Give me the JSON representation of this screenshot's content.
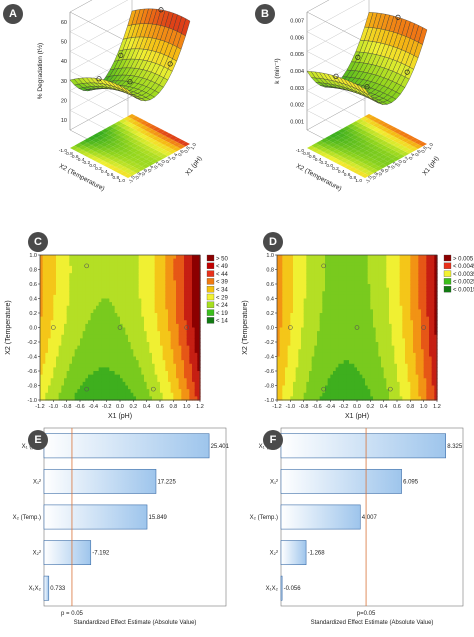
{
  "panels": {
    "a": {
      "letter": "A"
    },
    "b": {
      "letter": "B"
    },
    "c": {
      "letter": "C"
    },
    "d": {
      "letter": "D"
    },
    "e": {
      "letter": "E"
    },
    "f": {
      "letter": "F"
    }
  },
  "chart_data": [
    {
      "id": "A",
      "type": "surface3d",
      "zlabel": "% Degradation (t½)",
      "xlabel": "X1 (pH)",
      "ylabel": "X2 (Temperature)",
      "z_ticks": [
        "10",
        "20",
        "30",
        "40",
        "50",
        "60"
      ],
      "x_ticks": [
        "-1.0",
        "-0.8",
        "-0.6",
        "-0.4",
        "-0.2",
        "0.0",
        "0.2",
        "0.4",
        "0.6",
        "0.8",
        "1.0"
      ],
      "y_ticks": [
        "1.0",
        "0.8",
        "0.6",
        "0.4",
        "0.2",
        "0.0",
        "-0.2",
        "-0.4",
        "-0.6",
        "-0.8",
        "-1.0"
      ]
    },
    {
      "id": "B",
      "type": "surface3d",
      "zlabel": "k (min⁻¹)",
      "xlabel": "X1 (pH)",
      "ylabel": "X2 (Temperature)",
      "z_ticks": [
        "0.001",
        "0.002",
        "0.003",
        "0.004",
        "0.005",
        "0.006",
        "0.007"
      ],
      "x_ticks": [
        "-1.0",
        "-0.8",
        "-0.6",
        "-0.4",
        "-0.2",
        "0.0",
        "0.2",
        "0.4",
        "0.6",
        "0.8",
        "1.0"
      ],
      "y_ticks": [
        "1.0",
        "0.8",
        "0.6",
        "0.4",
        "0.2",
        "0.0",
        "-0.2",
        "-0.4",
        "-0.6",
        "-0.8",
        "-1.0"
      ]
    },
    {
      "id": "C",
      "type": "heatmap",
      "xlabel": "X1 (pH)",
      "ylabel": "X2 (Temperature)",
      "xlim": [
        -1.2,
        1.2
      ],
      "ylim": [
        -1.0,
        1.0
      ],
      "x_ticks": [
        "-1.2",
        "-1.0",
        "-0.8",
        "-0.6",
        "-0.4",
        "-0.2",
        "0.0",
        "0.2",
        "0.4",
        "0.6",
        "0.8",
        "1.0",
        "1.2"
      ],
      "y_ticks": [
        "1.0",
        "0.8",
        "0.6",
        "0.4",
        "0.2",
        "0.0",
        "-0.2",
        "-0.4",
        "-0.6",
        "-0.8",
        "-1.0"
      ],
      "legend": [
        "> 50",
        "< 49",
        "< 44",
        "< 39",
        "< 34",
        "< 29",
        "< 24",
        "< 19",
        "< 14"
      ],
      "legend_colors": [
        "#8b0000",
        "#c00000",
        "#e8301a",
        "#f07a10",
        "#f4c20d",
        "#f2f231",
        "#a6df1f",
        "#3cbf1c",
        "#127a12"
      ],
      "design_points": [
        [
          -0.5,
          0.85
        ],
        [
          -1.0,
          0.0
        ],
        [
          0.0,
          0.0
        ],
        [
          1.0,
          0.0
        ],
        [
          -0.5,
          -0.85
        ],
        [
          0.5,
          -0.85
        ]
      ]
    },
    {
      "id": "D",
      "type": "heatmap",
      "xlabel": "X1 (pH)",
      "ylabel": "X2 (Temperature)",
      "xlim": [
        -1.2,
        1.2
      ],
      "ylim": [
        -1.0,
        1.0
      ],
      "x_ticks": [
        "-1.2",
        "-1.0",
        "-0.8",
        "-0.6",
        "-0.4",
        "-0.2",
        "0.0",
        "0.2",
        "0.4",
        "0.6",
        "0.8",
        "1.0",
        "1.2"
      ],
      "y_ticks": [
        "1.0",
        "0.8",
        "0.6",
        "0.4",
        "0.2",
        "0.0",
        "-0.2",
        "-0.4",
        "-0.6",
        "-0.8",
        "-1.0"
      ],
      "legend": [
        "> 0.005",
        "< 0.0045",
        "< 0.0035",
        "< 0.0025",
        "< 0.0015"
      ],
      "legend_colors": [
        "#8b0000",
        "#e8301a",
        "#f2f231",
        "#3cbf1c",
        "#127a12"
      ],
      "design_points": [
        [
          -0.5,
          0.85
        ],
        [
          -1.0,
          0.0
        ],
        [
          0.0,
          0.0
        ],
        [
          1.0,
          0.0
        ],
        [
          -0.5,
          -0.85
        ],
        [
          0.5,
          -0.85
        ]
      ]
    },
    {
      "id": "E",
      "type": "bar",
      "orientation": "horizontal",
      "categories": [
        "X₁ (pH)",
        "X₁²",
        "X₂ (Temp.)",
        "X₂²",
        "X₁X₂"
      ],
      "values": [
        25.401,
        17.225,
        15.849,
        -7.192,
        0.733
      ],
      "value_labels": [
        "25.401",
        "17.225",
        "15.849",
        "-7.192",
        "0.733"
      ],
      "threshold": 4.3,
      "threshold_label": "p = 0.05",
      "xlabel": "Standardized Effect Estimate (Absolute Value)",
      "xlim": [
        0,
        28
      ]
    },
    {
      "id": "F",
      "type": "bar",
      "orientation": "horizontal",
      "categories": [
        "X₁ (pH)",
        "X₁²",
        "X₂ (Temp.)",
        "X₂²",
        "X₁X₂"
      ],
      "values": [
        8.325,
        6.095,
        4.007,
        -1.268,
        -0.056
      ],
      "value_labels": [
        "8.325",
        "6.095",
        "4.007",
        "-1.268",
        "-0.056"
      ],
      "threshold": 4.3,
      "threshold_label": "p=0.05",
      "xlabel": "Standardized Effect Estimate (Absolute Value)",
      "xlim": [
        0,
        9.2
      ]
    }
  ]
}
